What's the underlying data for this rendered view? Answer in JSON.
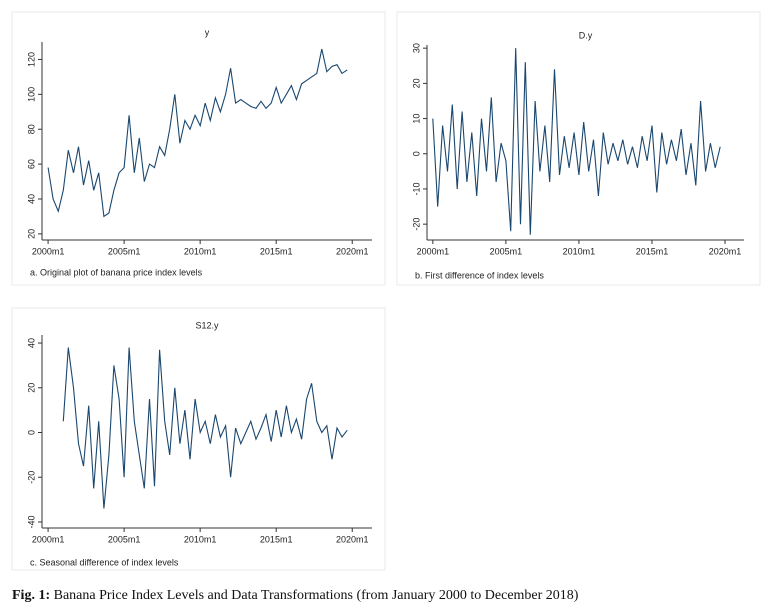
{
  "chart_data": [
    {
      "type": "line",
      "title": "y",
      "subtitle": "a. Original plot of banana price index levels",
      "x": [
        2000,
        2000.33,
        2000.67,
        2001,
        2001.33,
        2001.67,
        2002,
        2002.33,
        2002.67,
        2003,
        2003.33,
        2003.67,
        2004,
        2004.33,
        2004.67,
        2005,
        2005.33,
        2005.67,
        2006,
        2006.33,
        2006.67,
        2007,
        2007.33,
        2007.67,
        2008,
        2008.33,
        2008.67,
        2009,
        2009.33,
        2009.67,
        2010,
        2010.33,
        2010.67,
        2011,
        2011.33,
        2011.67,
        2012,
        2012.33,
        2012.67,
        2013,
        2013.33,
        2013.67,
        2014,
        2014.33,
        2014.67,
        2015,
        2015.33,
        2015.67,
        2016,
        2016.33,
        2016.67,
        2017,
        2017.33,
        2017.67,
        2018,
        2018.33,
        2018.67,
        2019,
        2019.33,
        2019.67
      ],
      "series": [
        {
          "color": "#1a476f",
          "values": [
            58,
            40,
            33,
            45,
            68,
            55,
            70,
            48,
            62,
            45,
            55,
            30,
            32,
            45,
            55,
            58,
            88,
            55,
            75,
            50,
            60,
            58,
            70,
            65,
            80,
            100,
            72,
            85,
            80,
            88,
            82,
            95,
            85,
            98,
            90,
            100,
            115,
            95,
            97,
            95,
            93,
            92,
            96,
            92,
            95,
            104,
            95,
            100,
            105,
            97,
            106,
            108,
            110,
            112,
            126,
            113,
            116,
            117,
            112,
            114
          ]
        }
      ],
      "xlim": [
        1999.6,
        2021.3
      ],
      "ylim": [
        16.5,
        130
      ],
      "xticks": [
        {
          "value": 2000,
          "label": "2000m1"
        },
        {
          "value": 2005,
          "label": "2005m1"
        },
        {
          "value": 2010,
          "label": "2010m1"
        },
        {
          "value": 2015,
          "label": "2015m1"
        },
        {
          "value": 2020,
          "label": "2020m1"
        }
      ],
      "yticks": [
        20,
        40,
        60,
        80,
        100,
        120
      ]
    },
    {
      "type": "line",
      "title": "D.y",
      "subtitle": "b. First difference of index levels",
      "x": [
        2000,
        2000.33,
        2000.67,
        2001,
        2001.33,
        2001.67,
        2002,
        2002.33,
        2002.67,
        2003,
        2003.33,
        2003.67,
        2004,
        2004.33,
        2004.67,
        2005,
        2005.33,
        2005.67,
        2006,
        2006.33,
        2006.67,
        2007,
        2007.33,
        2007.67,
        2008,
        2008.33,
        2008.67,
        2009,
        2009.33,
        2009.67,
        2010,
        2010.33,
        2010.67,
        2011,
        2011.33,
        2011.67,
        2012,
        2012.33,
        2012.67,
        2013,
        2013.33,
        2013.67,
        2014,
        2014.33,
        2014.67,
        2015,
        2015.33,
        2015.67,
        2016,
        2016.33,
        2016.67,
        2017,
        2017.33,
        2017.67,
        2018,
        2018.33,
        2018.67,
        2019,
        2019.33,
        2019.67
      ],
      "series": [
        {
          "color": "#1a476f",
          "values": [
            10,
            -15,
            8,
            -5,
            14,
            -10,
            12,
            -8,
            6,
            -12,
            10,
            -5,
            16,
            -8,
            3,
            -2,
            -22,
            30,
            -20,
            26,
            -23,
            15,
            -5,
            8,
            -8,
            24,
            -6,
            5,
            -4,
            6,
            -6,
            9,
            -5,
            4,
            -12,
            6,
            -3,
            3,
            -2,
            4,
            -3,
            2,
            -4,
            5,
            -2,
            8,
            -11,
            6,
            -3,
            4,
            -2,
            7,
            -6,
            3,
            -9,
            15,
            -5,
            3,
            -4,
            2
          ]
        }
      ],
      "xlim": [
        1999.6,
        2021.3
      ],
      "ylim": [
        -24.5,
        30.9
      ],
      "xticks": [
        {
          "value": 2000,
          "label": "2000m1"
        },
        {
          "value": 2005,
          "label": "2005m1"
        },
        {
          "value": 2010,
          "label": "2010m1"
        },
        {
          "value": 2015,
          "label": "2015m1"
        },
        {
          "value": 2020,
          "label": "2020m1"
        }
      ],
      "yticks": [
        -20,
        -10,
        0,
        10,
        20,
        30
      ]
    },
    {
      "type": "line",
      "title": "S12.y",
      "subtitle": "c. Seasonal difference of index levels",
      "x": [
        2001,
        2001.33,
        2001.67,
        2002,
        2002.33,
        2002.67,
        2003,
        2003.33,
        2003.67,
        2004,
        2004.33,
        2004.67,
        2005,
        2005.33,
        2005.67,
        2006,
        2006.33,
        2006.67,
        2007,
        2007.33,
        2007.67,
        2008,
        2008.33,
        2008.67,
        2009,
        2009.33,
        2009.67,
        2010,
        2010.33,
        2010.67,
        2011,
        2011.33,
        2011.67,
        2012,
        2012.33,
        2012.67,
        2013,
        2013.33,
        2013.67,
        2014,
        2014.33,
        2014.67,
        2015,
        2015.33,
        2015.67,
        2016,
        2016.33,
        2016.67,
        2017,
        2017.33,
        2017.67,
        2018,
        2018.33,
        2018.67,
        2019,
        2019.33,
        2019.67
      ],
      "series": [
        {
          "color": "#1a476f",
          "values": [
            5,
            38,
            20,
            -5,
            -15,
            12,
            -25,
            5,
            -34,
            -10,
            30,
            15,
            -20,
            38,
            5,
            -10,
            -25,
            15,
            -24,
            37,
            5,
            -10,
            20,
            -5,
            10,
            -12,
            15,
            0,
            5,
            -5,
            8,
            -2,
            3,
            -20,
            2,
            -5,
            0,
            5,
            -3,
            2,
            8,
            -4,
            10,
            -2,
            12,
            0,
            6,
            -3,
            15,
            22,
            5,
            0,
            3,
            -12,
            2,
            -2,
            1
          ]
        }
      ],
      "xlim": [
        1999.6,
        2021.3
      ],
      "ylim": [
        -42.7,
        43.6
      ],
      "xticks": [
        {
          "value": 2000,
          "label": "2000m1"
        },
        {
          "value": 2005,
          "label": "2005m1"
        },
        {
          "value": 2010,
          "label": "2010m1"
        },
        {
          "value": 2015,
          "label": "2015m1"
        },
        {
          "value": 2020,
          "label": "2020m1"
        }
      ],
      "yticks": [
        -40,
        -20,
        0,
        20,
        40
      ]
    }
  ],
  "caption": {
    "label": "Fig. 1:",
    "text": " Banana Price Index Levels and Data Transformations (from January 2000 to December 2018)"
  }
}
